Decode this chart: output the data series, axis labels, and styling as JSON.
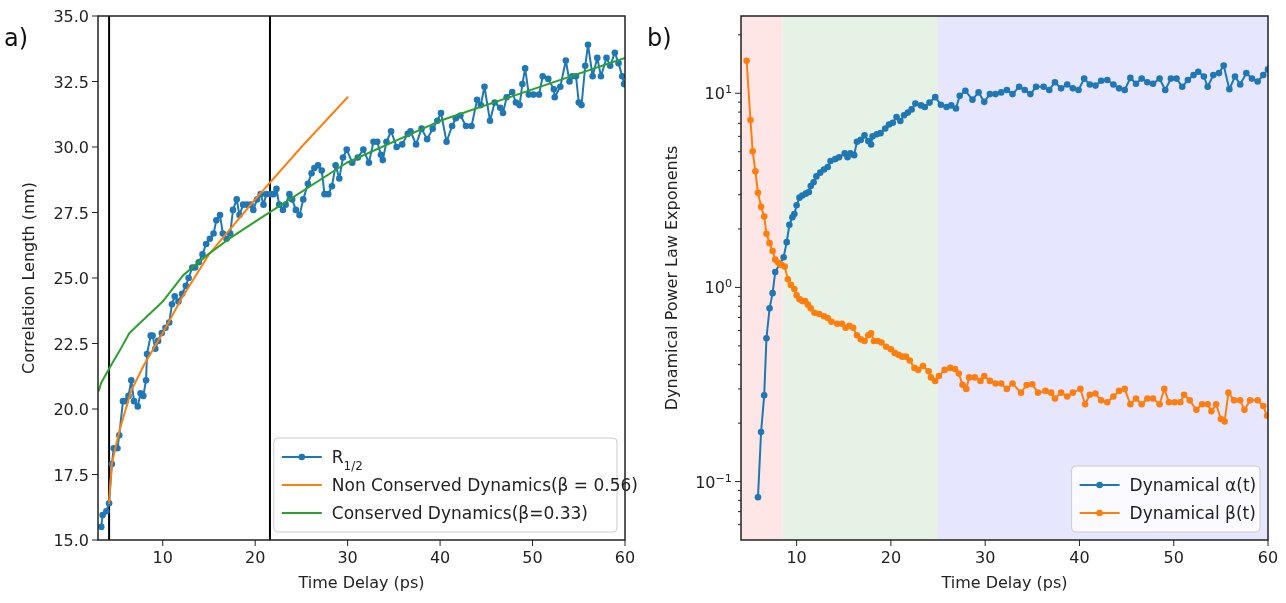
{
  "chart_data": [
    {
      "type": "line",
      "title": "a)",
      "xlabel": "Time Delay (ps)",
      "ylabel": "Correlation Length (nm)",
      "xlim": [
        3,
        60
      ],
      "ylim": [
        15,
        35
      ],
      "xticks": [
        10,
        20,
        30,
        40,
        50,
        60
      ],
      "yticks": [
        {
          "value": 15,
          "label": "15.0"
        },
        {
          "value": 17.5,
          "label": "17.5"
        },
        {
          "value": 20,
          "label": "20.0"
        },
        {
          "value": 22.5,
          "label": "22.5"
        },
        {
          "value": 25,
          "label": "25.0"
        },
        {
          "value": 27.5,
          "label": "27.5"
        },
        {
          "value": 30,
          "label": "30.0"
        },
        {
          "value": 32.5,
          "label": "32.5"
        },
        {
          "value": 35,
          "label": "35.0"
        }
      ],
      "grid": false,
      "legend": "bottom right",
      "ref_lines": [
        {
          "axis": "x",
          "value": 4.2,
          "color": "#000000"
        },
        {
          "axis": "x",
          "value": 21.6,
          "color": "#000000"
        }
      ],
      "series": [
        {
          "name": "R$_{1/2}$",
          "color": "#1f77b4",
          "marker": "circle",
          "x": [
            3.35,
            3.5,
            3.9,
            4.2,
            4.5,
            4.7,
            5.1,
            5.3,
            5.7,
            6.0,
            6.3,
            6.6,
            6.9,
            7.3,
            7.6,
            7.9,
            8.2,
            8.3,
            8.7,
            8.9,
            9.2,
            9.5,
            9.9,
            10.3,
            10.7,
            11.0,
            11.3,
            11.7,
            12.1,
            12.5,
            12.8,
            13.2,
            13.5,
            13.9,
            14.3,
            14.7,
            15.1,
            15.5,
            15.8,
            16.2,
            16.5,
            16.9,
            17.3,
            17.6,
            18.0,
            18.3,
            18.7,
            19.1,
            19.5,
            19.8,
            20.2,
            20.6,
            20.9,
            21.2,
            21.7,
            22.0,
            22.3,
            22.6,
            23.0,
            23.3,
            23.7,
            24.0,
            24.4,
            24.8,
            25.2,
            25.7,
            26.1,
            26.4,
            26.8,
            27.2,
            27.5,
            27.9,
            28.3,
            28.7,
            29.1,
            29.5,
            29.9,
            30.5,
            31.1,
            31.7,
            32.3,
            32.8,
            33.2,
            33.6,
            33.8,
            34.2,
            34.7,
            35.3,
            35.9,
            36.5,
            36.8,
            37.4,
            38.0,
            38.6,
            39.2,
            39.7,
            40.1,
            40.7,
            41.3,
            41.7,
            42.2,
            42.8,
            43.4,
            44.0,
            44.4,
            44.8,
            45.4,
            45.9,
            46.5,
            46.8,
            47.2,
            47.8,
            48.2,
            48.6,
            48.9,
            49.2,
            49.6,
            50.1,
            50.7,
            51.1,
            51.7,
            52.3,
            52.4,
            53.0,
            53.6,
            54.0,
            54.3,
            54.7,
            55.0,
            55.3,
            55.7,
            56.0,
            56.5,
            57.0,
            57.4,
            58.0,
            58.4,
            58.9,
            59.3,
            59.7,
            59.9
          ],
          "values": [
            15.5,
            15.95,
            16.1,
            16.4,
            17.9,
            18.5,
            18.5,
            19.0,
            20.3,
            20.3,
            20.5,
            21.1,
            20.3,
            20.1,
            20.6,
            20.5,
            21.1,
            22.1,
            22.8,
            22.8,
            22.3,
            22.6,
            22.9,
            23.1,
            23.3,
            24.0,
            24.3,
            24.1,
            24.4,
            24.7,
            25.0,
            25.4,
            25.4,
            25.6,
            25.9,
            26.3,
            26.5,
            26.7,
            27.2,
            27.4,
            26.7,
            26.5,
            26.7,
            27.6,
            28.0,
            27.4,
            27.8,
            27.8,
            27.8,
            27.6,
            28.0,
            28.2,
            27.8,
            28.2,
            28.2,
            28.2,
            28.4,
            27.8,
            27.6,
            27.8,
            28.2,
            28.0,
            27.6,
            27.4,
            28.0,
            28.6,
            29.0,
            29.2,
            29.3,
            29.1,
            28.2,
            28.2,
            28.5,
            29.3,
            28.8,
            29.6,
            29.9,
            29.4,
            29.6,
            29.9,
            29.4,
            30.2,
            30.2,
            29.7,
            29.5,
            30.2,
            30.6,
            30.0,
            30.1,
            30.5,
            30.6,
            30.1,
            30.7,
            30.3,
            30.7,
            31.0,
            31.3,
            30.2,
            30.8,
            31.1,
            31.2,
            30.8,
            30.8,
            31.8,
            31.6,
            32.3,
            31.0,
            31.7,
            31.5,
            31.3,
            31.9,
            32.1,
            31.7,
            31.6,
            32.4,
            33.0,
            32.0,
            32.0,
            32.0,
            32.7,
            32.6,
            32.2,
            31.9,
            32.3,
            33.3,
            32.5,
            32.7,
            32.7,
            31.7,
            31.6,
            33.1,
            33.9,
            32.7,
            33.4,
            32.7,
            33.4,
            33.1,
            33.6,
            33.2,
            32.7,
            32.4
          ]
        },
        {
          "name": "Non Conserved Dynamics(β = 0.56)",
          "color": "#ff7f0e",
          "marker": "none",
          "x": [
            4.2,
            4.3,
            4.5,
            5,
            5.5,
            6.6,
            8,
            10,
            12,
            15,
            20,
            25,
            30
          ],
          "values": [
            16.4,
            17.0,
            17.9,
            18.7,
            19.4,
            20.7,
            21.7,
            22.9,
            24.2,
            25.9,
            28.0,
            30.0,
            31.9
          ]
        },
        {
          "name": "Conserved Dynamics(β=0.33)",
          "color": "#2ca02c",
          "marker": "none",
          "x": [
            3.08,
            3.35,
            4.3,
            5.3,
            6.4,
            7.6,
            10,
            12.2,
            14.9,
            17.2,
            20,
            29.9,
            40,
            50,
            60
          ],
          "values": [
            20.7,
            21.0,
            21.6,
            22.2,
            22.9,
            23.3,
            24.1,
            25.1,
            25.9,
            26.5,
            27.15,
            29.4,
            31.0,
            32.2,
            33.4
          ]
        }
      ]
    },
    {
      "type": "line",
      "title": "b)",
      "xlabel": "Time Delay (ps)",
      "ylabel": "Dynamical Power Law Exponents",
      "log": "y",
      "xlim": [
        4.1,
        60
      ],
      "ylim": [
        0.05,
        25
      ],
      "xticks": [
        10,
        20,
        30,
        40,
        50,
        60
      ],
      "yticks": [
        {
          "value": 0.06,
          "label": null
        },
        {
          "value": 0.07,
          "label": null
        },
        {
          "value": 0.08,
          "label": null
        },
        {
          "value": 0.09,
          "label": null
        },
        {
          "value": 0.1,
          "label": "10$^{−1}$"
        },
        {
          "value": 0.2,
          "label": null
        },
        {
          "value": 0.3,
          "label": null
        },
        {
          "value": 0.4,
          "label": null
        },
        {
          "value": 0.5,
          "label": null
        },
        {
          "value": 0.6,
          "label": null
        },
        {
          "value": 0.7,
          "label": null
        },
        {
          "value": 0.8,
          "label": null
        },
        {
          "value": 0.9,
          "label": null
        },
        {
          "value": 1,
          "label": "10$^{0}$"
        },
        {
          "value": 2,
          "label": null
        },
        {
          "value": 3,
          "label": null
        },
        {
          "value": 4,
          "label": null
        },
        {
          "value": 5,
          "label": null
        },
        {
          "value": 6,
          "label": null
        },
        {
          "value": 7,
          "label": null
        },
        {
          "value": 8,
          "label": null
        },
        {
          "value": 9,
          "label": null
        },
        {
          "value": 10,
          "label": "10$^{1}$"
        },
        {
          "value": 20,
          "label": null
        }
      ],
      "grid": false,
      "legend": "bottom right",
      "marker": "circle",
      "bands": [
        {
          "axis": "x",
          "from": 4.1,
          "to": 8.5,
          "color": "#ffe6e6"
        },
        {
          "axis": "x",
          "from": 8.5,
          "to": 25,
          "color": "#e6f2e6"
        },
        {
          "axis": "x",
          "from": 25,
          "to": 60,
          "color": "#e6e6ff"
        }
      ],
      "series": [
        {
          "name": "Dynamical α(t)",
          "color": "#1f77b4",
          "x": [
            5.9,
            6.23,
            6.56,
            6.8,
            7.13,
            7.45,
            7.73,
            8.62,
            8.95,
            9.23,
            9.55,
            9.76,
            10.0,
            10.3,
            10.6,
            10.97,
            11.3,
            11.5,
            11.8,
            12.1,
            12.5,
            12.9,
            13.3,
            13.6,
            14.1,
            14.5,
            15.1,
            15.4,
            15.7,
            16.1,
            16.4,
            16.8,
            17.2,
            17.6,
            17.9,
            18.06,
            18.5,
            18.9,
            19.4,
            19.8,
            20.2,
            20.6,
            21.0,
            21.4,
            21.8,
            22.2,
            22.6,
            23.2,
            23.6,
            24.1,
            24.7,
            25.3,
            25.9,
            26.4,
            26.9,
            27.3,
            27.9,
            28.65,
            29.3,
            29.9,
            30.5,
            31.1,
            31.7,
            32.3,
            32.9,
            33.6,
            34.2,
            34.8,
            35.4,
            36.2,
            36.8,
            37.4,
            38.05,
            38.7,
            39.3,
            39.9,
            40.5,
            41.1,
            41.7,
            42.3,
            42.95,
            43.6,
            44.2,
            44.8,
            45.4,
            46.0,
            46.6,
            47.2,
            47.8,
            48.5,
            49.1,
            49.7,
            50.3,
            50.9,
            51.5,
            52.1,
            52.6,
            53.2,
            53.6,
            54.2,
            54.8,
            55.3,
            55.9,
            56.5,
            57.05,
            57.7,
            58.3,
            58.9,
            59.5,
            60.0
          ],
          "values": [
            0.083,
            0.18,
            0.278,
            0.547,
            0.78,
            0.934,
            1.2,
            1.43,
            1.71,
            2.1,
            2.3,
            2.39,
            2.65,
            2.9,
            2.97,
            3.04,
            3.1,
            3.33,
            3.48,
            3.73,
            3.9,
            4.05,
            4.17,
            4.48,
            4.58,
            4.68,
            4.9,
            4.68,
            4.9,
            4.8,
            5.62,
            5.75,
            6.07,
            5.68,
            5.45,
            6.0,
            6.15,
            6.23,
            6.58,
            6.9,
            7.05,
            7.55,
            7.2,
            7.7,
            7.95,
            8.26,
            8.85,
            8.66,
            8.5,
            8.95,
            9.55,
            8.73,
            8.5,
            8.66,
            8.35,
            9.7,
            10.3,
            9.27,
            10.1,
            9.03,
            9.9,
            9.9,
            10.1,
            10.4,
            9.9,
            10.8,
            10.4,
            9.9,
            10.8,
            10.8,
            10.4,
            11.4,
            10.6,
            11.1,
            10.6,
            10.4,
            11.9,
            11.1,
            10.95,
            11.6,
            11.7,
            11.1,
            10.6,
            10.4,
            12.0,
            11.2,
            11.9,
            11.4,
            11.2,
            11.9,
            10.4,
            11.9,
            11.9,
            10.8,
            11.7,
            12.4,
            12.9,
            12.2,
            10.8,
            12.4,
            12.7,
            13.9,
            10.5,
            12.2,
            11.1,
            12.7,
            11.9,
            11.5,
            12.4,
            13.3
          ]
        },
        {
          "name": "Dynamical β(t)",
          "color": "#ff7f0e",
          "x": [
            4.7,
            5.1,
            5.34,
            5.63,
            5.9,
            6.23,
            6.56,
            6.8,
            7.13,
            7.45,
            7.73,
            8.06,
            8.34,
            8.74,
            9.07,
            9.39,
            9.76,
            10.0,
            10.3,
            10.6,
            10.9,
            11.2,
            11.5,
            11.9,
            12.4,
            12.9,
            13.3,
            13.7,
            14.3,
            14.8,
            15.2,
            15.6,
            16.0,
            16.4,
            16.8,
            17.2,
            17.6,
            17.9,
            18.2,
            18.6,
            19.0,
            19.5,
            20.0,
            20.4,
            20.8,
            21.2,
            21.6,
            22.0,
            22.5,
            22.9,
            23.4,
            24.0,
            24.25,
            24.7,
            25.1,
            25.7,
            26.3,
            26.8,
            27.2,
            27.6,
            28.0,
            28.3,
            28.9,
            29.5,
            29.9,
            30.5,
            31.1,
            31.7,
            32.3,
            32.9,
            33.8,
            34.4,
            35.0,
            35.6,
            36.4,
            37.0,
            37.4,
            38.05,
            38.7,
            39.3,
            40.1,
            40.6,
            41.1,
            41.7,
            42.3,
            42.95,
            43.6,
            44.2,
            44.8,
            45.4,
            46.0,
            46.6,
            47.2,
            47.8,
            48.5,
            49.0,
            49.5,
            50.1,
            50.7,
            51.1,
            51.7,
            52.4,
            53.0,
            53.6,
            54.0,
            54.5,
            55.0,
            55.4,
            55.8,
            56.4,
            57.05,
            57.5,
            58.1,
            58.9,
            59.5,
            59.9
          ],
          "values": [
            14.7,
            7.28,
            5.02,
            3.96,
            3.07,
            2.6,
            2.32,
            1.89,
            1.69,
            1.54,
            1.39,
            1.34,
            1.31,
            1.28,
            1.1,
            1.03,
            0.98,
            0.91,
            0.87,
            0.85,
            0.85,
            0.815,
            0.78,
            0.74,
            0.73,
            0.71,
            0.695,
            0.665,
            0.65,
            0.65,
            0.62,
            0.635,
            0.62,
            0.567,
            0.54,
            0.53,
            0.567,
            0.58,
            0.53,
            0.53,
            0.52,
            0.495,
            0.48,
            0.46,
            0.45,
            0.44,
            0.44,
            0.42,
            0.385,
            0.376,
            0.394,
            0.37,
            0.344,
            0.33,
            0.35,
            0.376,
            0.385,
            0.38,
            0.36,
            0.315,
            0.3,
            0.344,
            0.344,
            0.33,
            0.35,
            0.33,
            0.32,
            0.32,
            0.3,
            0.32,
            0.287,
            0.314,
            0.317,
            0.287,
            0.293,
            0.287,
            0.268,
            0.287,
            0.274,
            0.287,
            0.3,
            0.25,
            0.28,
            0.284,
            0.262,
            0.256,
            0.274,
            0.293,
            0.3,
            0.25,
            0.268,
            0.25,
            0.268,
            0.268,
            0.25,
            0.3,
            0.256,
            0.256,
            0.256,
            0.28,
            0.262,
            0.234,
            0.25,
            0.25,
            0.23,
            0.25,
            0.21,
            0.204,
            0.287,
            0.262,
            0.262,
            0.234,
            0.262,
            0.262,
            0.245,
            0.218
          ]
        }
      ]
    }
  ]
}
